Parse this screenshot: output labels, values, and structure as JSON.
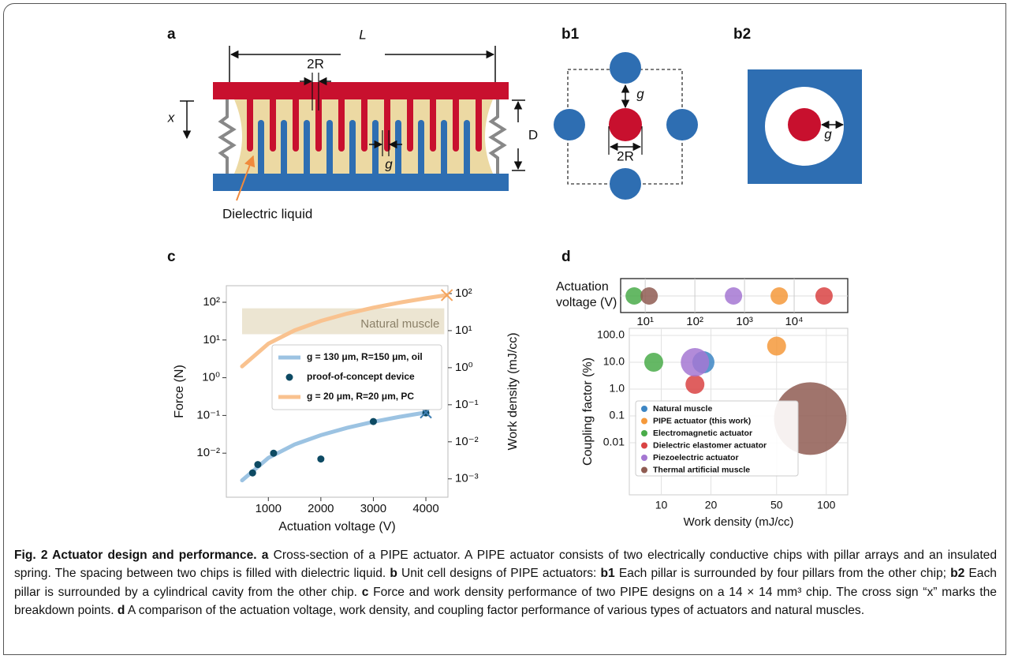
{
  "panels": {
    "a": "a",
    "b1": "b1",
    "b2": "b2",
    "c": "c",
    "d": "d"
  },
  "diagram_a": {
    "length": "L",
    "two_r": "2R",
    "x": "x",
    "d": "D",
    "g": "g",
    "liquid": "Dielectric liquid"
  },
  "diagram_b1": {
    "g": "g",
    "two_r": "2R"
  },
  "diagram_b2": {
    "g": "g"
  },
  "chart_data": [
    {
      "type": "line",
      "log_y": true,
      "x_label": "Actuation voltage (V)",
      "y_label": "Force (N)",
      "y2_label": "Work density (mJ/cc)",
      "xlim": [
        200,
        4420
      ],
      "xticks": [
        1000,
        2000,
        3000,
        4000
      ],
      "ylim": [
        0.00068,
        275
      ],
      "yticks": [
        {
          "value": 0.01,
          "label": "10⁻²"
        },
        {
          "value": 0.1,
          "label": "10⁻¹"
        },
        {
          "value": 1,
          "label": "10⁰"
        },
        {
          "value": 10,
          "label": "10¹"
        },
        {
          "value": 100,
          "label": "10²"
        }
      ],
      "y2lim": [
        0.00032,
        163
      ],
      "y2ticks": [
        {
          "value": 0.001,
          "label": "10⁻³"
        },
        {
          "value": 0.01,
          "label": "10⁻²"
        },
        {
          "value": 0.1,
          "label": "10⁻¹"
        },
        {
          "value": 1,
          "label": "10⁰"
        },
        {
          "value": 10,
          "label": "10¹"
        },
        {
          "value": 100,
          "label": "10²"
        }
      ],
      "legend": "center-right",
      "series": [
        {
          "name": "g = 130 μm, R=150 μm, oil",
          "type": "line",
          "color": "#9cc3e2",
          "x": [
            500,
            1000,
            1500,
            2000,
            2500,
            3000,
            3500,
            4000
          ],
          "values": [
            0.0019,
            0.0075,
            0.017,
            0.03,
            0.047,
            0.068,
            0.092,
            0.12
          ]
        },
        {
          "name": "proof-of-concept device",
          "type": "scatter",
          "color": "#0d4a63",
          "x": [
            700,
            800,
            1100,
            2000,
            3000,
            4000
          ],
          "values": [
            0.003,
            0.005,
            0.01,
            0.007,
            0.069,
            0.117
          ]
        },
        {
          "name": "g = 20 μm, R=20 μm, PC",
          "type": "line",
          "color": "#f9c28f",
          "x": [
            500,
            1000,
            1500,
            2000,
            2500,
            3000,
            3500,
            4000,
            4400
          ],
          "values": [
            2,
            8,
            18,
            32,
            50,
            72,
            98,
            128,
            155
          ]
        }
      ],
      "breakdown": [
        {
          "x": 4000,
          "value": 0.12,
          "color": "#3f7fb3"
        },
        {
          "x": 4400,
          "value": 155,
          "color": "#f3a35c"
        }
      ],
      "band": {
        "label": "Natural muscle",
        "x": [
          500,
          4350
        ],
        "y2": [
          8,
          40
        ],
        "color": "#ece5d2"
      }
    },
    {
      "type": "bubble",
      "log_x": true,
      "log_y": true,
      "x_label": "Work density (mJ/cc)",
      "y_label": "Coupling factor (%)",
      "voltage_label": [
        "Actuation",
        "voltage (V)"
      ],
      "voltage_lim": [
        3.2,
        120000
      ],
      "voltage_ticks": [
        {
          "value": 10,
          "label": "10¹"
        },
        {
          "value": 100,
          "label": "10²"
        },
        {
          "value": 1000,
          "label": "10³"
        },
        {
          "value": 10000,
          "label": "10⁴"
        }
      ],
      "xlim": [
        6.4,
        135
      ],
      "xticks": [
        10,
        20,
        50,
        100
      ],
      "ylim": [
        0.000115,
        184
      ],
      "yticks": [
        {
          "value": 100,
          "label": "100.0"
        },
        {
          "value": 10,
          "label": "10.0"
        },
        {
          "value": 1,
          "label": "1.0"
        },
        0.1,
        0.01
      ],
      "series": [
        {
          "name": "Natural muscle",
          "color": "#3d86c4",
          "x": [
            18
          ],
          "values": [
            10
          ],
          "sizes": [
            14
          ],
          "voltage": [
            null
          ]
        },
        {
          "name": "PIPE actuator (this work)",
          "color": "#f5993b",
          "x": [
            50
          ],
          "values": [
            40
          ],
          "sizes": [
            12
          ],
          "voltage": [
            5000
          ]
        },
        {
          "name": "Electromagnetic actuator",
          "color": "#4aac4a",
          "x": [
            9
          ],
          "values": [
            10
          ],
          "sizes": [
            12
          ],
          "voltage": [
            6
          ]
        },
        {
          "name": "Dielectric elastomer actuator",
          "color": "#d94343",
          "x": [
            16
          ],
          "values": [
            1.5
          ],
          "sizes": [
            12
          ],
          "voltage": [
            40000
          ]
        },
        {
          "name": "Piezoelectric actuator",
          "color": "#a477d2",
          "x": [
            16
          ],
          "values": [
            10
          ],
          "sizes": [
            18
          ],
          "voltage": [
            600
          ]
        },
        {
          "name": "Thermal artificial muscle",
          "color": "#8f5c52",
          "x": [
            80
          ],
          "values": [
            0.08
          ],
          "sizes": [
            46
          ],
          "voltage": [
            12
          ]
        }
      ]
    }
  ],
  "caption": [
    "Fig. 2 Actuator design and performance.",
    "a",
    "Cross-section of a PIPE actuator. A PIPE actuator consists of two electrically conductive chips with pillar arrays and an insulated spring. The spacing between two chips is filled with dielectric liquid.",
    "b",
    "Unit cell designs of PIPE actuators:",
    "b1",
    "Each pillar is surrounded by four pillars from the other chip;",
    "b2",
    "Each pillar is surrounded by a cylindrical cavity from the other chip.",
    "c",
    "Force and work density performance of two PIPE designs on a 14 × 14 mm³ chip. The cross sign “x” marks the breakdown points.",
    "d",
    "A comparison of the actuation voltage, work density, and coupling factor performance of various types of actuators and natural muscles."
  ]
}
